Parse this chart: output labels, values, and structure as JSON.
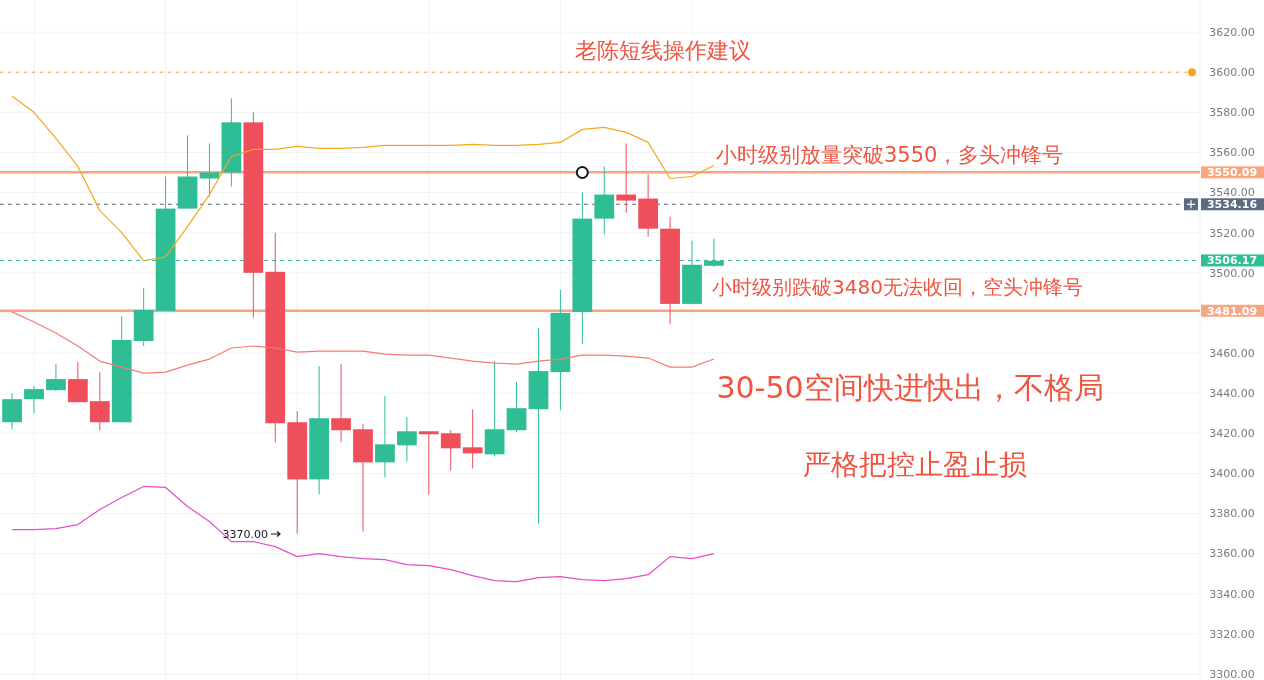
{
  "chart_data": {
    "type": "candlestick",
    "title": "老陈短线操作建议",
    "categories": [
      null,
      null,
      null,
      null,
      null,
      null,
      null,
      null,
      null,
      null,
      null,
      null,
      null,
      null,
      null,
      null,
      null,
      null,
      null,
      null,
      null,
      null,
      null,
      null,
      null,
      null,
      null,
      null,
      null,
      null,
      null,
      null,
      null
    ],
    "ohlc": [
      [
        3425.5,
        3440,
        3422,
        3437
      ],
      [
        3437,
        3443.5,
        3430,
        3442
      ],
      [
        3441.5,
        3454.5,
        3441,
        3447
      ],
      [
        3447,
        3455.5,
        3435.5,
        3435.5
      ],
      [
        3436,
        3450.5,
        3421.5,
        3425.5
      ],
      [
        3425.5,
        3478.5,
        3425.5,
        3466.5
      ],
      [
        3466,
        3492.5,
        3463.5,
        3481.5
      ],
      [
        3481,
        3548,
        3481,
        3532
      ],
      [
        3532,
        3568.5,
        3532,
        3548
      ],
      [
        3547,
        3564.5,
        3538,
        3550
      ],
      [
        3550,
        3587,
        3543,
        3575
      ],
      [
        3575,
        3580,
        3477.5,
        3500
      ],
      [
        3500.5,
        3520,
        3415.5,
        3425
      ],
      [
        3425.5,
        3431,
        3370,
        3397
      ],
      [
        3397,
        3453.5,
        3389.5,
        3427.5
      ],
      [
        3427.5,
        3454.5,
        3415.5,
        3421.5
      ],
      [
        3422,
        3424.5,
        3371,
        3405.5
      ],
      [
        3405.5,
        3438.5,
        3398,
        3414.5
      ],
      [
        3414,
        3428,
        3406,
        3421
      ],
      [
        3421,
        3421,
        3389.5,
        3419.5
      ],
      [
        3420,
        3421.5,
        3401.5,
        3412.5
      ],
      [
        3413,
        3432,
        3402.5,
        3410
      ],
      [
        3409.5,
        3456,
        3408.5,
        3422
      ],
      [
        3421.5,
        3445.5,
        3420.5,
        3432.5
      ],
      [
        3432,
        3472.5,
        3375,
        3451
      ],
      [
        3450.5,
        3491.5,
        3431.5,
        3480
      ],
      [
        3480.5,
        3540,
        3464.5,
        3527
      ],
      [
        3527,
        3553,
        3519,
        3539
      ],
      [
        3539,
        3564.5,
        3530,
        3536
      ],
      [
        3537,
        3549,
        3518,
        3522
      ],
      [
        3522,
        3528,
        3474.5,
        3484.5
      ],
      [
        3484.5,
        3516,
        3484.5,
        3504
      ],
      [
        3503.5,
        3517,
        3503,
        3506
      ]
    ],
    "series": [
      {
        "type": "line",
        "color": "#f5a81f",
        "values": [
          3588,
          3580,
          3567,
          3553,
          3531,
          3520,
          3506,
          3508,
          3523,
          3539,
          3558,
          3561.5,
          3561.5,
          3563,
          3562,
          3562,
          3562.5,
          3563.5,
          3563.5,
          3563.5,
          3563.5,
          3564,
          3563.5,
          3563.5,
          3564,
          3565,
          3571.5,
          3572.5,
          3570,
          3565,
          3547,
          3548,
          3553.5
        ]
      },
      {
        "type": "line",
        "color": "#f47c74",
        "values": [
          3480.5,
          3475.5,
          3470,
          3463.5,
          3456,
          3453,
          3450,
          3450.5,
          3454,
          3457,
          3462.5,
          3463.5,
          3462.5,
          3460.5,
          3461,
          3461,
          3461,
          3459.5,
          3459,
          3459,
          3457.5,
          3456,
          3455,
          3454.5,
          3456,
          3457,
          3459,
          3459,
          3458.5,
          3457.5,
          3453,
          3453,
          3457
        ]
      },
      {
        "type": "line",
        "color": "#e54fc8",
        "values": [
          3372,
          3372,
          3372.5,
          3374.5,
          3382,
          3388,
          3393.5,
          3393,
          3383.5,
          3376,
          3366,
          3366,
          3363.5,
          3358.5,
          3360,
          3358.5,
          3357.5,
          3357,
          3354.5,
          3354,
          3352,
          3349,
          3346.5,
          3346,
          3348,
          3348.5,
          3347,
          3346.5,
          3347.5,
          3349.5,
          3358.5,
          3357.5,
          3360
        ]
      },
      {
        "type": "scatter",
        "color": "#131722",
        "marker": "circle",
        "values": [
          null,
          null,
          null,
          null,
          null,
          null,
          null,
          null,
          null,
          null,
          null,
          null,
          null,
          null,
          null,
          null,
          null,
          null,
          null,
          null,
          null,
          null,
          null,
          null,
          null,
          null,
          3550,
          null,
          null,
          null,
          null,
          null,
          null
        ]
      }
    ],
    "ref_lines": [
      {
        "axis": "y",
        "value": 3600,
        "color": "#f5a623",
        "line_style": "dotted"
      },
      {
        "axis": "y",
        "value": 3550.09,
        "label": "3550.09",
        "color": "#f9a57f",
        "line_style": "solid"
      },
      {
        "axis": "y",
        "value": 3534.16,
        "label": "3534.16",
        "color": "#5d6b82",
        "line_style": "dashed"
      },
      {
        "axis": "y",
        "value": 3506.17,
        "label": "3506.17",
        "color": "#2ebd95",
        "line_style": "dashed"
      },
      {
        "axis": "y",
        "value": 3481.09,
        "label": "3481.09",
        "color": "#f9a57f",
        "line_style": "solid"
      }
    ],
    "annotations": [
      "小时级别放量突破3550，多头冲锋号",
      "小时级别跌破3480无法收回，空头冲锋号",
      "30-50空间快进快出，不格局",
      "严格把控止盈止损",
      "3370.00"
    ],
    "ylim": [
      3297,
      3636
    ],
    "yticks": [
      {
        "value": 3300,
        "label": "3300.00"
      },
      {
        "value": 3320,
        "label": "3320.00"
      },
      {
        "value": 3340,
        "label": "3340.00"
      },
      {
        "value": 3360,
        "label": "3360.00"
      },
      {
        "value": 3380,
        "label": "3380.00"
      },
      {
        "value": 3400,
        "label": "3400.00"
      },
      {
        "value": 3420,
        "label": "3420.00"
      },
      {
        "value": 3440,
        "label": "3440.00"
      },
      {
        "value": 3460,
        "label": "3460.00"
      },
      {
        "value": 3480,
        "label": null
      },
      {
        "value": 3500,
        "label": "3500.00"
      },
      {
        "value": 3520,
        "label": "3520.00"
      },
      {
        "value": 3540,
        "label": "3540.00"
      },
      {
        "value": 3560,
        "label": "3560.00"
      },
      {
        "value": 3580,
        "label": "3580.00"
      },
      {
        "value": 3600,
        "label": "3600.00"
      },
      {
        "value": 3620,
        "label": "3620.00"
      }
    ],
    "grid": true,
    "tick_labels": "y"
  }
}
